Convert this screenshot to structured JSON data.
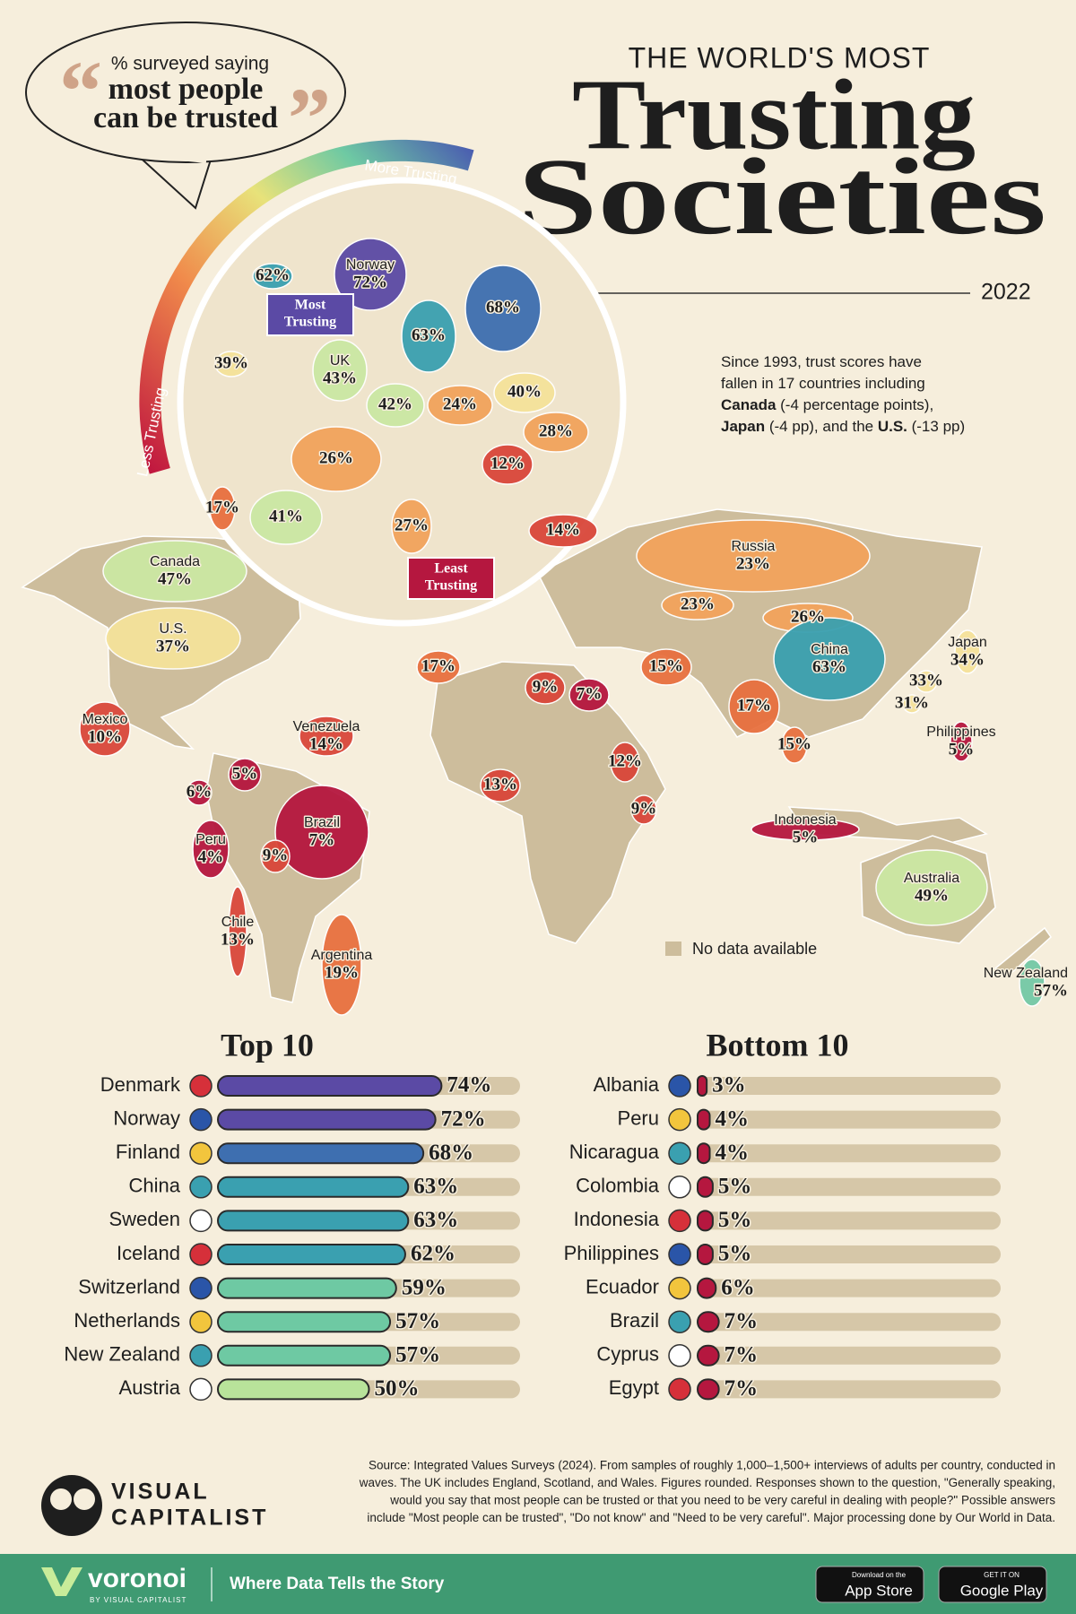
{
  "header": {
    "kicker": "THE WORLD'S MOST",
    "title_line1": "Trusting",
    "title_line2": "Societies",
    "year": "2022"
  },
  "callout": {
    "line1": "% surveyed saying",
    "line2": "most people",
    "line3": "can be trusted"
  },
  "scale": {
    "more": "More Trusting",
    "less": "Less Trusting"
  },
  "note": {
    "lines": [
      [
        {
          "text": "Since 1993, trust scores have"
        }
      ],
      [
        {
          "text": "fallen in 17 countries including"
        }
      ],
      [
        {
          "text": "Canada",
          "bold": true
        },
        {
          "text": " (-4 percentage points),"
        }
      ],
      [
        {
          "text": "Japan",
          "bold": true
        },
        {
          "text": " (-4 pp), and the "
        },
        {
          "text": "U.S.",
          "bold": true
        },
        {
          "text": " (-13 pp)"
        }
      ]
    ]
  },
  "map": {
    "most_tag": [
      "Most",
      "Trusting"
    ],
    "least_tag": [
      "Least",
      "Trusting"
    ],
    "legend": "No data available",
    "labels": [
      {
        "value": 62,
        "value_label": "62%"
      },
      {
        "name": "Norway",
        "value": 72,
        "value_label": "72%"
      },
      {
        "value": 68,
        "value_label": "68%"
      },
      {
        "value": 63,
        "value_label": "63%"
      },
      {
        "value": 39,
        "value_label": "39%"
      },
      {
        "name": "UK",
        "value": 43,
        "value_label": "43%"
      },
      {
        "value": 42,
        "value_label": "42%"
      },
      {
        "value": 24,
        "value_label": "24%"
      },
      {
        "value": 40,
        "value_label": "40%"
      },
      {
        "value": 28,
        "value_label": "28%"
      },
      {
        "value": 26,
        "value_label": "26%"
      },
      {
        "value": 12,
        "value_label": "12%"
      },
      {
        "value": 17,
        "value_label": "17%"
      },
      {
        "value": 41,
        "value_label": "41%"
      },
      {
        "value": 27,
        "value_label": "27%"
      },
      {
        "value": 14,
        "value_label": "14%"
      },
      {
        "name": "Canada",
        "value": 47,
        "value_label": "47%"
      },
      {
        "name": "U.S.",
        "value": 37,
        "value_label": "37%"
      },
      {
        "name": "Mexico",
        "value": 10,
        "value_label": "10%"
      },
      {
        "name": "Venezuela",
        "value": 14,
        "value_label": "14%"
      },
      {
        "value": 5,
        "value_label": "5%"
      },
      {
        "value": 6,
        "value_label": "6%"
      },
      {
        "name": "Peru",
        "value": 4,
        "value_label": "4%"
      },
      {
        "name": "Brazil",
        "value": 7,
        "value_label": "7%"
      },
      {
        "value": 9,
        "value_label": "9%"
      },
      {
        "name": "Chile",
        "value": 13,
        "value_label": "13%"
      },
      {
        "name": "Argentina",
        "value": 19,
        "value_label": "19%"
      },
      {
        "value": 17,
        "value_label": "17%"
      },
      {
        "value": 9,
        "value_label": "9%"
      },
      {
        "value": 7,
        "value_label": "7%"
      },
      {
        "value": 15,
        "value_label": "15%"
      },
      {
        "value": 13,
        "value_label": "13%"
      },
      {
        "value": 12,
        "value_label": "12%"
      },
      {
        "value": 9,
        "value_label": "9%"
      },
      {
        "name": "Russia",
        "value": 23,
        "value_label": "23%"
      },
      {
        "value": 23,
        "value_label": "23%"
      },
      {
        "value": 26,
        "value_label": "26%"
      },
      {
        "name": "China",
        "value": 63,
        "value_label": "63%"
      },
      {
        "name": "Japan",
        "value": 34,
        "value_label": "34%"
      },
      {
        "value": 33,
        "value_label": "33%"
      },
      {
        "value": 31,
        "value_label": "31%"
      },
      {
        "value": 17,
        "value_label": "17%"
      },
      {
        "value": 15,
        "value_label": "15%"
      },
      {
        "name": "Philippines",
        "value": 5,
        "value_label": "5%"
      },
      {
        "name": "Indonesia",
        "value": 5,
        "value_label": "5%"
      },
      {
        "name": "Australia",
        "value": 49,
        "value_label": "49%"
      },
      {
        "name": "New Zealand",
        "value": 57,
        "value_label": "57%"
      }
    ]
  },
  "chart_data": [
    {
      "type": "bar",
      "title": "Top 10",
      "categories": [
        "Denmark",
        "Norway",
        "Finland",
        "China",
        "Sweden",
        "Iceland",
        "Switzerland",
        "Netherlands",
        "New Zealand",
        "Austria"
      ],
      "values": [
        74,
        72,
        68,
        63,
        63,
        62,
        59,
        57,
        57,
        50
      ],
      "value_labels": [
        "74%",
        "72%",
        "68%",
        "63%",
        "63%",
        "62%",
        "59%",
        "57%",
        "57%",
        "50%"
      ],
      "colors": [
        "#5b4aa5",
        "#5b4aa5",
        "#3e6fb0",
        "#3aa0b0",
        "#3aa0b0",
        "#3aa0b0",
        "#6ec9a3",
        "#6ec9a3",
        "#6ec9a3",
        "#b8e39a"
      ],
      "xlim": [
        0,
        100
      ]
    },
    {
      "type": "bar",
      "title": "Bottom 10",
      "categories": [
        "Albania",
        "Peru",
        "Nicaragua",
        "Colombia",
        "Indonesia",
        "Philippines",
        "Ecuador",
        "Brazil",
        "Cyprus",
        "Egypt"
      ],
      "values": [
        3,
        4,
        4,
        5,
        5,
        5,
        6,
        7,
        7,
        7
      ],
      "value_labels": [
        "3%",
        "4%",
        "4%",
        "5%",
        "5%",
        "5%",
        "6%",
        "7%",
        "7%",
        "7%"
      ],
      "color": "#b5173f",
      "xlim": [
        0,
        100
      ]
    }
  ],
  "source": {
    "lines": [
      "Source: Integrated Values Surveys (2024). From samples of roughly 1,000–1,500+ interviews of adults per country, conducted in",
      "waves. The UK includes England, Scotland, and Wales. Figures rounded. Responses shown to the question, \"Generally speaking,",
      "would you say that most people can be trusted or that you need to be very careful in dealing with people?\" Possible answers",
      "include \"Most people can be trusted\", \"Do not know\" and \"Need to be very careful\". Major processing done by Our World in Data."
    ]
  },
  "brand": {
    "logo": [
      "VISUAL",
      "CAPITALIST"
    ]
  },
  "footer": {
    "brand": "voronoi",
    "by": "BY VISUAL CAPITALIST",
    "tagline": "Where Data Tells the Story",
    "app_store": [
      "Download on the",
      "App Store"
    ],
    "google_play": [
      "GET IT ON",
      "Google Play"
    ]
  }
}
